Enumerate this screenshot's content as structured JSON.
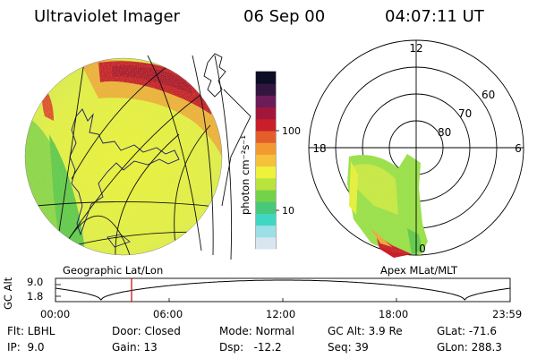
{
  "header": {
    "instrument": "Ultraviolet Imager",
    "date": "06 Sep 00",
    "time": "04:07:11 UT"
  },
  "colorbar": {
    "unit_label": "photon cm⁻²s⁻¹",
    "ticks": [
      "100",
      "10"
    ],
    "colors": [
      "#d9e6ef",
      "#9be0e6",
      "#3fd6c2",
      "#47c87a",
      "#74d24a",
      "#b9e33d",
      "#eef23b",
      "#f6c13a",
      "#f29a31",
      "#e25f2b",
      "#c91f2b",
      "#a3163b",
      "#6a1d59",
      "#32163f",
      "#0d0d25"
    ]
  },
  "left_image": {
    "caption": "Geographic Lat/Lon"
  },
  "right_image": {
    "caption": "Apex MLat/MLT",
    "mlt_labels": {
      "top": "12",
      "left": "18",
      "right": "6",
      "bottom": "0"
    },
    "lat_labels": [
      "60",
      "70",
      "80"
    ]
  },
  "timeline": {
    "ylabel": "GC Alt",
    "yticks": [
      "9.0",
      "1.8"
    ],
    "xticks": [
      "00:00",
      "06:00",
      "12:00",
      "18:00",
      "23:59"
    ]
  },
  "info": {
    "flt": "Flt: LBHL",
    "ip": "IP:  9.0",
    "door": "Door: Closed",
    "gain": "Gain: 13",
    "mode": "Mode: Normal",
    "dsp": "Dsp:   -12.2",
    "gcalt": "GC Alt: 3.9 Re",
    "seq": "Seq: 39",
    "glat": "GLat: -71.6",
    "glon": "GLon: 288.3"
  }
}
